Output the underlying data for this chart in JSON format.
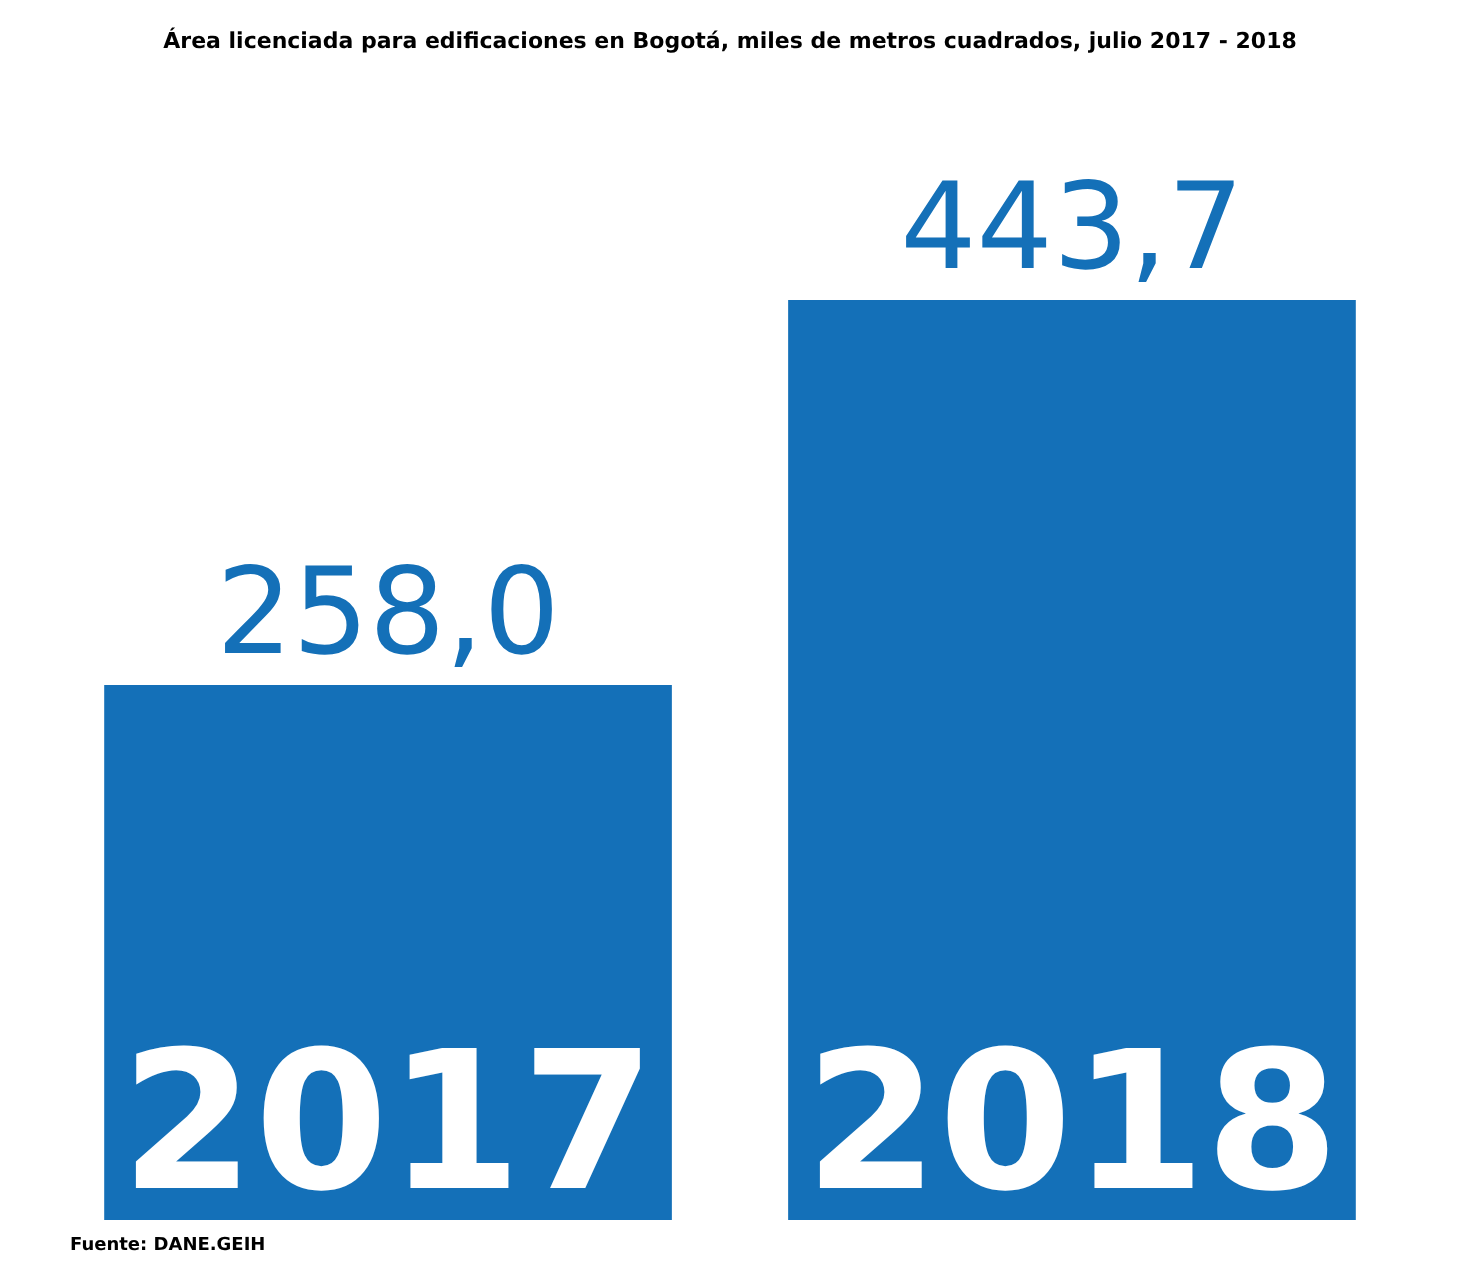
{
  "chart_data": {
    "type": "bar",
    "title": "Área licenciada para edificaciones en Bogotá, miles de metros cuadrados, julio 2017 - 2018",
    "categories": [
      "2017",
      "2018"
    ],
    "values": [
      258.0,
      443.7
    ],
    "value_labels": [
      "258,0",
      "443,7"
    ],
    "color": "#1470b8",
    "annotations": [
      "Fuente: DANE.GEIH"
    ]
  }
}
